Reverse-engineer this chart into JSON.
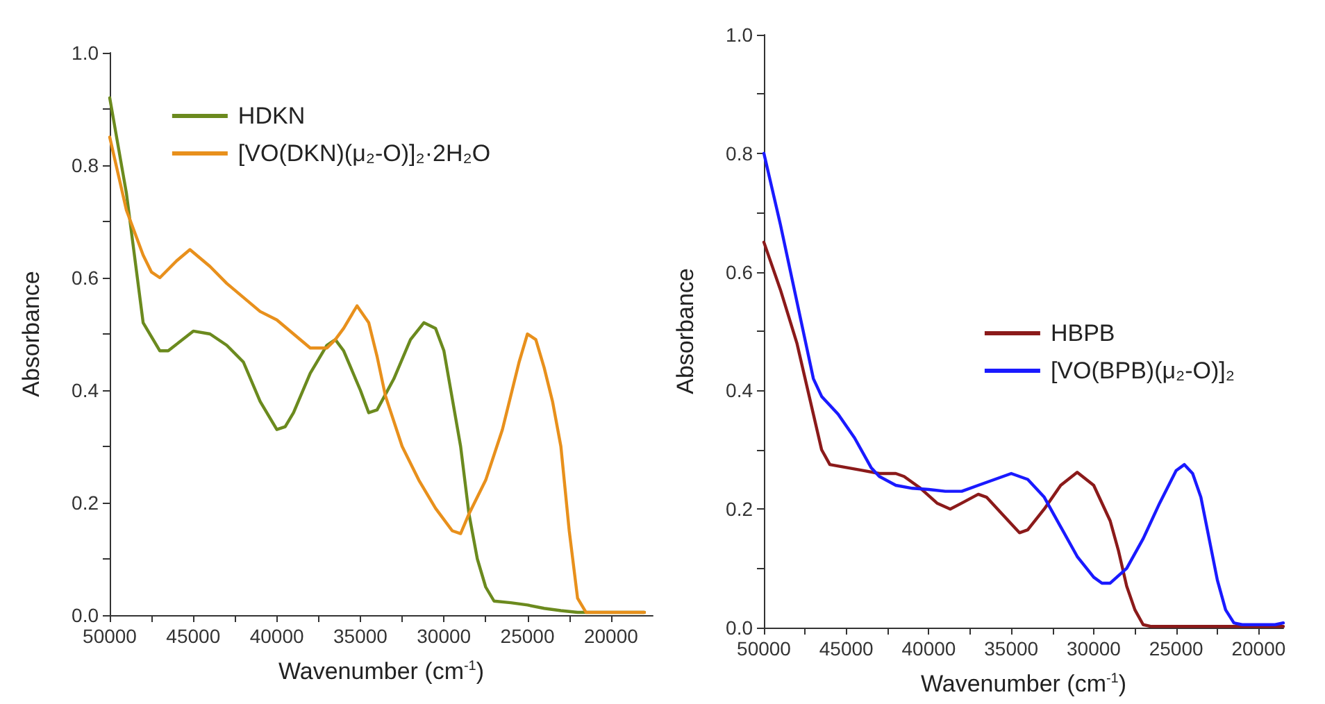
{
  "chart_data": [
    {
      "type": "line",
      "xlabel": "Wavenumber (cm$^{-1}$)",
      "ylabel": "Absorbance",
      "legend": "top",
      "grid": false,
      "marker": "none",
      "line_style": "solid",
      "xlim": [
        50000,
        17500
      ],
      "ylim": [
        0,
        1.0
      ],
      "xticks": [
        50000,
        {
          "value": 47500,
          "label": null
        },
        45000,
        {
          "value": 42500,
          "label": null
        },
        40000,
        {
          "value": 37500,
          "label": null
        },
        35000,
        {
          "value": 32500,
          "label": null
        },
        30000,
        {
          "value": 27500,
          "label": null
        },
        25000,
        {
          "value": 22500,
          "label": null
        },
        20000
      ],
      "yticks": [
        {
          "value": 0,
          "label": "0.0"
        },
        {
          "value": 0.1,
          "label": null
        },
        0.2,
        {
          "value": 0.3,
          "label": null
        },
        0.4,
        {
          "value": 0.5,
          "label": null
        },
        0.6,
        {
          "value": 0.7,
          "label": null
        },
        0.8,
        {
          "value": 0.9,
          "label": null
        },
        {
          "value": 1,
          "label": "1.0"
        }
      ],
      "series": [
        {
          "name": "HDKN",
          "color": "#6b8a1e",
          "x": [
            50000,
            49000,
            48000,
            47000,
            46500,
            45000,
            44000,
            43000,
            42000,
            41000,
            40000,
            39500,
            39000,
            38000,
            37000,
            36500,
            36000,
            35000,
            34500,
            34000,
            33000,
            32000,
            31200,
            30500,
            30000,
            29000,
            28500,
            28000,
            27500,
            27000,
            26000,
            25000,
            24000,
            23000,
            22000,
            20000,
            18000
          ],
          "values": [
            0.92,
            0.75,
            0.52,
            0.47,
            0.47,
            0.505,
            0.5,
            0.48,
            0.45,
            0.38,
            0.33,
            0.335,
            0.36,
            0.43,
            0.48,
            0.49,
            0.47,
            0.4,
            0.36,
            0.365,
            0.42,
            0.49,
            0.52,
            0.51,
            0.47,
            0.3,
            0.18,
            0.1,
            0.05,
            0.025,
            0.022,
            0.018,
            0.012,
            0.008,
            0.005,
            0.005,
            0.005
          ]
        },
        {
          "name": "[VO(DKN)(μ₂-O)]₂·2H₂O",
          "color": "#e8901c",
          "x": [
            50000,
            49000,
            48000,
            47500,
            47000,
            46000,
            45200,
            44000,
            43000,
            42000,
            41000,
            40000,
            39000,
            38000,
            37000,
            36500,
            36000,
            35200,
            34500,
            34000,
            33500,
            32500,
            31500,
            30500,
            29500,
            29000,
            28500,
            27500,
            26500,
            25500,
            25000,
            24500,
            24000,
            23500,
            23000,
            22500,
            22000,
            21500,
            20000,
            18000
          ],
          "values": [
            0.85,
            0.72,
            0.64,
            0.61,
            0.6,
            0.63,
            0.65,
            0.62,
            0.59,
            0.565,
            0.54,
            0.525,
            0.5,
            0.475,
            0.475,
            0.49,
            0.51,
            0.55,
            0.52,
            0.46,
            0.39,
            0.3,
            0.24,
            0.19,
            0.15,
            0.145,
            0.18,
            0.24,
            0.33,
            0.45,
            0.5,
            0.49,
            0.44,
            0.38,
            0.3,
            0.15,
            0.03,
            0.005,
            0.005,
            0.005
          ]
        }
      ]
    },
    {
      "type": "line",
      "xlabel": "Wavenumber (cm$^{-1}$)",
      "ylabel": "Absorbance",
      "legend": "right",
      "grid": false,
      "marker": "none",
      "line_style": "solid",
      "xlim": [
        50000,
        18500
      ],
      "ylim": [
        0,
        1.0
      ],
      "xticks": [
        50000,
        {
          "value": 47500,
          "label": null
        },
        45000,
        {
          "value": 42500,
          "label": null
        },
        40000,
        {
          "value": 37500,
          "label": null
        },
        35000,
        {
          "value": 32500,
          "label": null
        },
        30000,
        {
          "value": 27500,
          "label": null
        },
        25000,
        {
          "value": 22500,
          "label": null
        },
        20000
      ],
      "yticks": [
        {
          "value": 0,
          "label": "0.0"
        },
        {
          "value": 0.1,
          "label": null
        },
        0.2,
        {
          "value": 0.3,
          "label": null
        },
        0.4,
        {
          "value": 0.5,
          "label": null
        },
        0.6,
        {
          "value": 0.7,
          "label": null
        },
        0.8,
        {
          "value": 0.9,
          "label": null
        },
        {
          "value": 1,
          "label": "1.0"
        }
      ],
      "series": [
        {
          "name": "HBPB",
          "color": "#8b1a1a",
          "x": [
            50000,
            49000,
            48000,
            47000,
            46500,
            46000,
            45000,
            44000,
            43000,
            42000,
            41500,
            40500,
            39500,
            38700,
            38000,
            37000,
            36500,
            35500,
            34500,
            34000,
            33000,
            32000,
            31000,
            30000,
            29000,
            28500,
            28000,
            27500,
            27000,
            26500,
            25000,
            20000,
            18500
          ],
          "values": [
            0.65,
            0.57,
            0.48,
            0.36,
            0.3,
            0.275,
            0.27,
            0.265,
            0.26,
            0.26,
            0.255,
            0.235,
            0.21,
            0.2,
            0.21,
            0.225,
            0.22,
            0.19,
            0.16,
            0.165,
            0.2,
            0.24,
            0.262,
            0.24,
            0.18,
            0.13,
            0.07,
            0.03,
            0.005,
            0.002,
            0.002,
            0.002,
            0.002
          ]
        },
        {
          "name": "[VO(BPB)(μ₂-O)]₂",
          "color": "#1a1aff",
          "x": [
            50000,
            49000,
            48000,
            47000,
            46500,
            45500,
            44500,
            43500,
            43000,
            42000,
            41000,
            40000,
            39000,
            38000,
            37000,
            36000,
            35000,
            34000,
            33000,
            32000,
            31000,
            30000,
            29500,
            29000,
            28000,
            27000,
            26000,
            25000,
            24500,
            24000,
            23500,
            23000,
            22500,
            22000,
            21500,
            21000,
            19000,
            18500
          ],
          "values": [
            0.8,
            0.68,
            0.55,
            0.42,
            0.39,
            0.36,
            0.32,
            0.27,
            0.255,
            0.24,
            0.235,
            0.233,
            0.23,
            0.23,
            0.24,
            0.25,
            0.26,
            0.25,
            0.22,
            0.17,
            0.12,
            0.085,
            0.075,
            0.075,
            0.1,
            0.15,
            0.21,
            0.265,
            0.275,
            0.26,
            0.22,
            0.15,
            0.08,
            0.03,
            0.008,
            0.005,
            0.005,
            0.008
          ]
        }
      ]
    }
  ]
}
